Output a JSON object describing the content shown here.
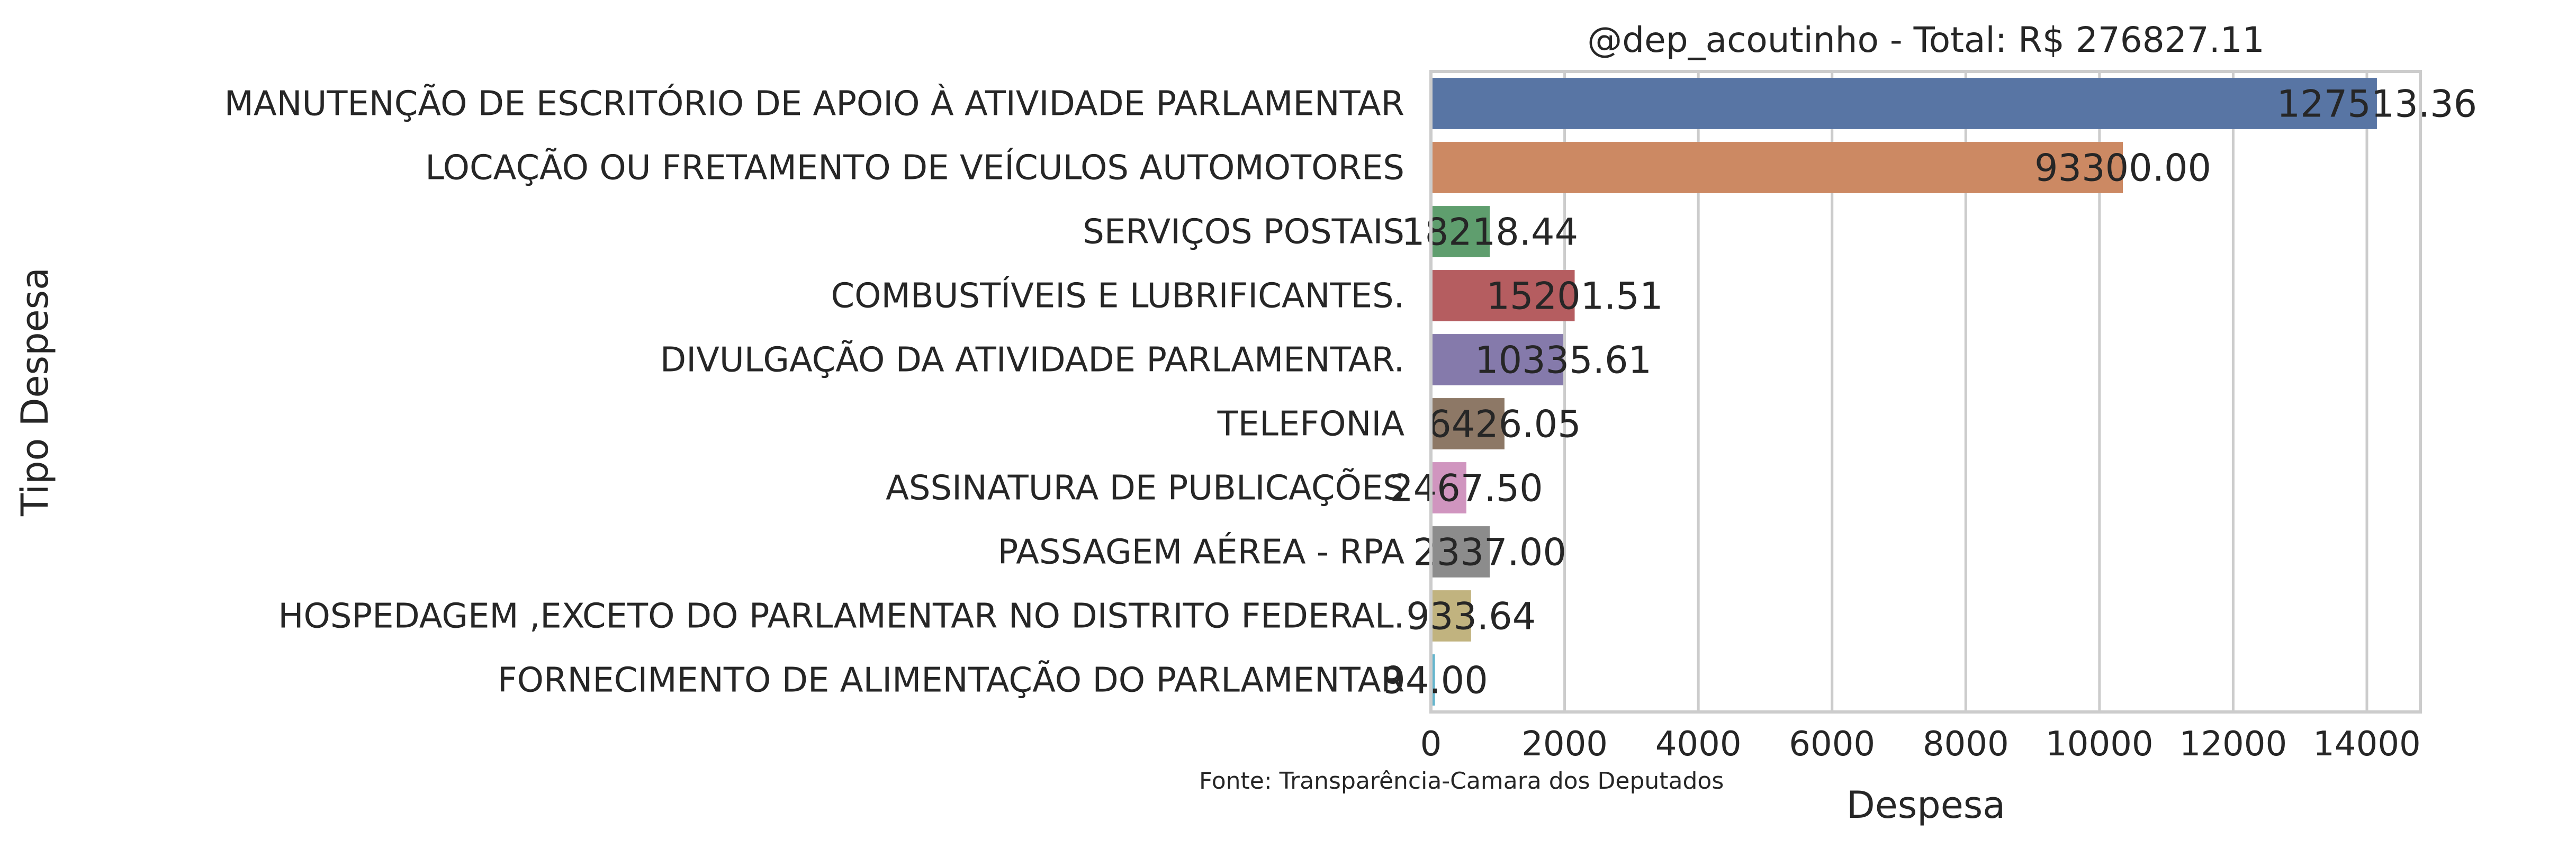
{
  "chart_data": {
    "type": "bar",
    "orientation": "horizontal",
    "title": "@dep_acoutinho - Total: R$ 276827.11",
    "xlabel": "Despesa",
    "ylabel": "Tipo Despesa",
    "xlim": [
      0,
      14800
    ],
    "xticks": [
      0,
      2000,
      4000,
      6000,
      8000,
      10000,
      12000,
      14000
    ],
    "grid": "vertical",
    "source": "Fonte: Transparência-Camara dos Deputados",
    "categories": [
      "MANUTENÇÃO DE ESCRITÓRIO DE APOIO À ATIVIDADE PARLAMENTAR",
      "LOCAÇÃO OU FRETAMENTO DE VEÍCULOS AUTOMOTORES",
      "SERVIÇOS POSTAIS",
      "COMBUSTÍVEIS E LUBRIFICANTES.",
      "DIVULGAÇÃO DA ATIVIDADE PARLAMENTAR.",
      "TELEFONIA",
      "ASSINATURA DE PUBLICAÇÕES",
      "PASSAGEM AÉREA - RPA",
      "HOSPEDAGEM ,EXCETO DO PARLAMENTAR NO DISTRITO FEDERAL.",
      "FORNECIMENTO DE ALIMENTAÇÃO DO PARLAMENTAR"
    ],
    "values": [
      14150,
      10350,
      880,
      2150,
      1980,
      1100,
      530,
      880,
      600,
      60
    ],
    "bar_labels": [
      "127513.36",
      "93300.00",
      "18218.44",
      "15201.51",
      "10335.61",
      "6426.05",
      "2467.50",
      "2337.00",
      "933.64",
      "94.00"
    ],
    "colors": [
      "#5875a4",
      "#cc8963",
      "#5f9e6e",
      "#b55d60",
      "#857aab",
      "#8d7866",
      "#d095bf",
      "#8c8c8c",
      "#c1b37f",
      "#64b5cd"
    ]
  }
}
